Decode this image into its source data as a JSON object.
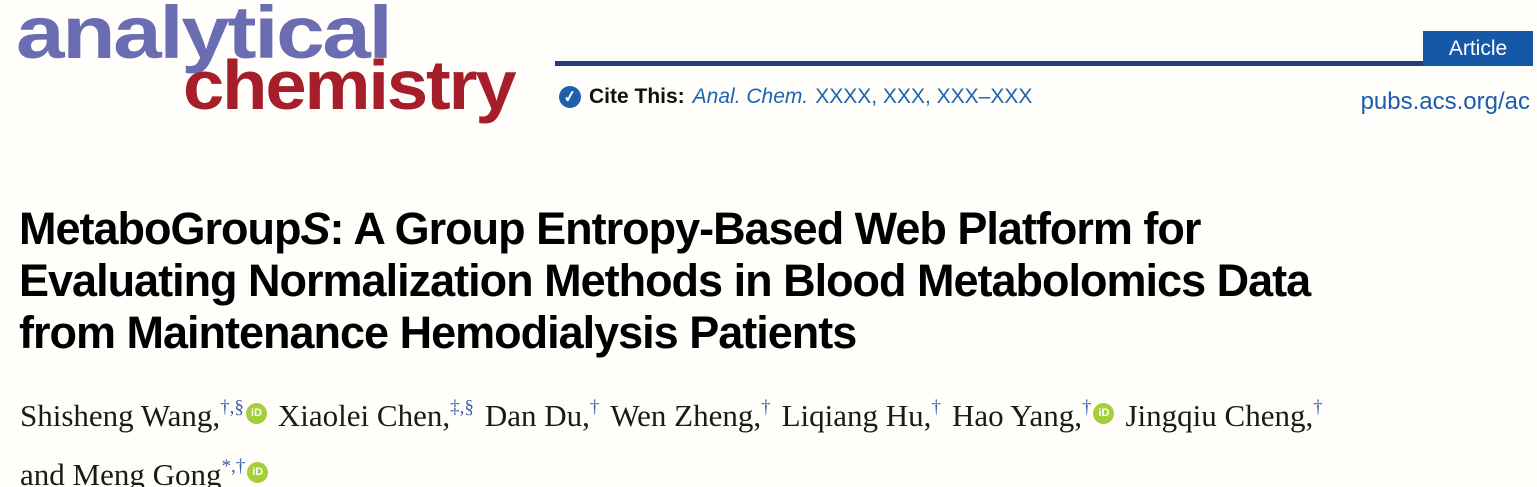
{
  "journal": {
    "logo_line1": "analytical",
    "logo_line2": "chemistry",
    "colors": {
      "logo_purple": "#6b6db2",
      "logo_red": "#a51e29",
      "rule_navy": "#203d7c",
      "badge_blue": "#1558a7",
      "link_blue": "#1a5dad",
      "cite_blue": "#1c64b0",
      "superscript_blue": "#3d5fa9",
      "orcid_green": "#a6ce39"
    }
  },
  "header": {
    "article_badge": "Article",
    "site_link": "pubs.acs.org/ac",
    "cite_check_glyph": "✓",
    "cite_label": "Cite This:",
    "cite_journal": "Anal. Chem.",
    "cite_ref": "XXXX, XXX, XXX–XXX"
  },
  "title": {
    "line1_pre": "MetaboGroup",
    "line1_italic": "S",
    "line1_post": ": A Group Entropy-Based Web Platform for",
    "line2": "Evaluating Normalization Methods in Blood Metabolomics Data",
    "line3": "from Maintenance Hemodialysis Patients"
  },
  "authors": {
    "orcid_label": "iD",
    "line1": [
      {
        "name": "Shisheng Wang,",
        "sup": "†,§",
        "orcid": true
      },
      {
        "name": "Xiaolei Chen,",
        "sup": "‡,§",
        "orcid": false
      },
      {
        "name": "Dan Du,",
        "sup": "†",
        "orcid": false
      },
      {
        "name": "Wen Zheng,",
        "sup": "†",
        "orcid": false
      },
      {
        "name": "Liqiang Hu,",
        "sup": "†",
        "orcid": false
      },
      {
        "name": "Hao Yang,",
        "sup": "†",
        "orcid": true
      },
      {
        "name": "Jingqiu Cheng,",
        "sup": "†",
        "orcid": false
      }
    ],
    "line2_prefix": "and ",
    "line2": [
      {
        "name": "Meng Gong",
        "sup": "*,†",
        "orcid": true
      }
    ]
  }
}
